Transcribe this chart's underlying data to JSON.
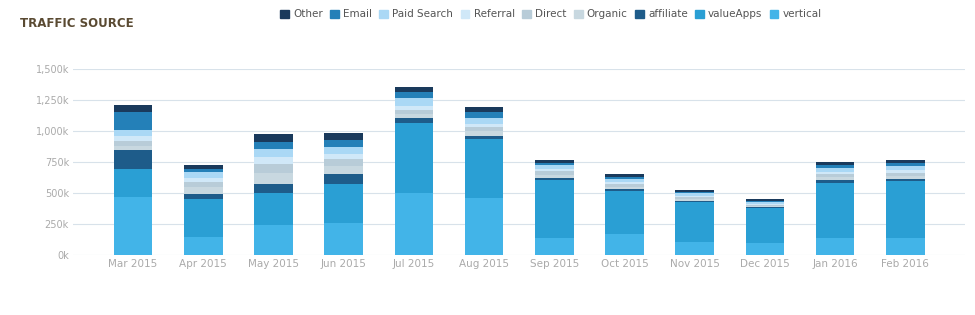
{
  "title": "TRAFFIC SOURCE",
  "categories": [
    "Mar 2015",
    "Apr 2015",
    "May 2015",
    "Jun 2015",
    "Jul 2015",
    "Aug 2015",
    "Sep 2015",
    "Oct 2015",
    "Nov 2015",
    "Dec 2015",
    "Jan 2016",
    "Feb 2016"
  ],
  "series_order": [
    "vertical",
    "valueApps",
    "affiliate",
    "Organic",
    "Direct",
    "Referral",
    "Paid Search",
    "Email",
    "Other"
  ],
  "series": {
    "vertical": [
      470000,
      145000,
      245000,
      260000,
      500000,
      460000,
      135000,
      170000,
      105000,
      95000,
      135000,
      140000
    ],
    "valueApps": [
      225000,
      310000,
      255000,
      315000,
      570000,
      475000,
      470000,
      345000,
      320000,
      285000,
      450000,
      455000
    ],
    "affiliate": [
      155000,
      40000,
      75000,
      80000,
      35000,
      30000,
      15000,
      15000,
      10000,
      8000,
      20000,
      20000
    ],
    "Organic": [
      28000,
      55000,
      85000,
      62000,
      35000,
      35000,
      30000,
      22000,
      16000,
      10000,
      25000,
      26000
    ],
    "Direct": [
      46000,
      40000,
      75000,
      55000,
      32000,
      32000,
      27000,
      20000,
      15000,
      9000,
      23000,
      24000
    ],
    "Referral": [
      38000,
      32000,
      60000,
      48000,
      28000,
      28000,
      22000,
      16000,
      12000,
      8000,
      19000,
      19000
    ],
    "Paid Search": [
      45000,
      48000,
      60000,
      56000,
      65000,
      50000,
      28000,
      28000,
      22000,
      18000,
      33000,
      33000
    ],
    "Email": [
      145000,
      22000,
      58000,
      52000,
      50000,
      47000,
      18000,
      18000,
      10000,
      8000,
      23000,
      23000
    ],
    "Other": [
      57000,
      38000,
      68000,
      58000,
      42000,
      38000,
      22000,
      18000,
      18000,
      13000,
      26000,
      26000
    ]
  },
  "colors": {
    "vertical": "#42b4e8",
    "valueApps": "#2a9fd4",
    "affiliate": "#1e5c8a",
    "Organic": "#c8d8e0",
    "Direct": "#b8ccd8",
    "Referral": "#d0e8f8",
    "Paid Search": "#aad8f5",
    "Email": "#2480b8",
    "Other": "#1a3a5c"
  },
  "ylim": [
    0,
    1500000
  ],
  "yticks": [
    0,
    250000,
    500000,
    750000,
    1000000,
    1250000,
    1500000
  ],
  "ytick_labels": [
    "0k",
    "250k",
    "500k",
    "750k",
    "1,000k",
    "1,250k",
    "1,500k"
  ],
  "legend_order": [
    "Other",
    "Email",
    "Paid Search",
    "Referral",
    "Direct",
    "Organic",
    "affiliate",
    "valueApps",
    "vertical"
  ],
  "legend_colors": {
    "Other": "#1a3a5c",
    "Email": "#2480b8",
    "Paid Search": "#aad8f5",
    "Referral": "#d0e8f8",
    "Direct": "#b8ccd8",
    "Organic": "#c8d8e0",
    "affiliate": "#1e5c8a",
    "valueApps": "#2a9fd4",
    "vertical": "#42b4e8"
  },
  "background_color": "#ffffff",
  "grid_color": "#d8e2ea",
  "title_color": "#5a4a32",
  "axis_label_color": "#aaaaaa",
  "bar_width": 0.55
}
